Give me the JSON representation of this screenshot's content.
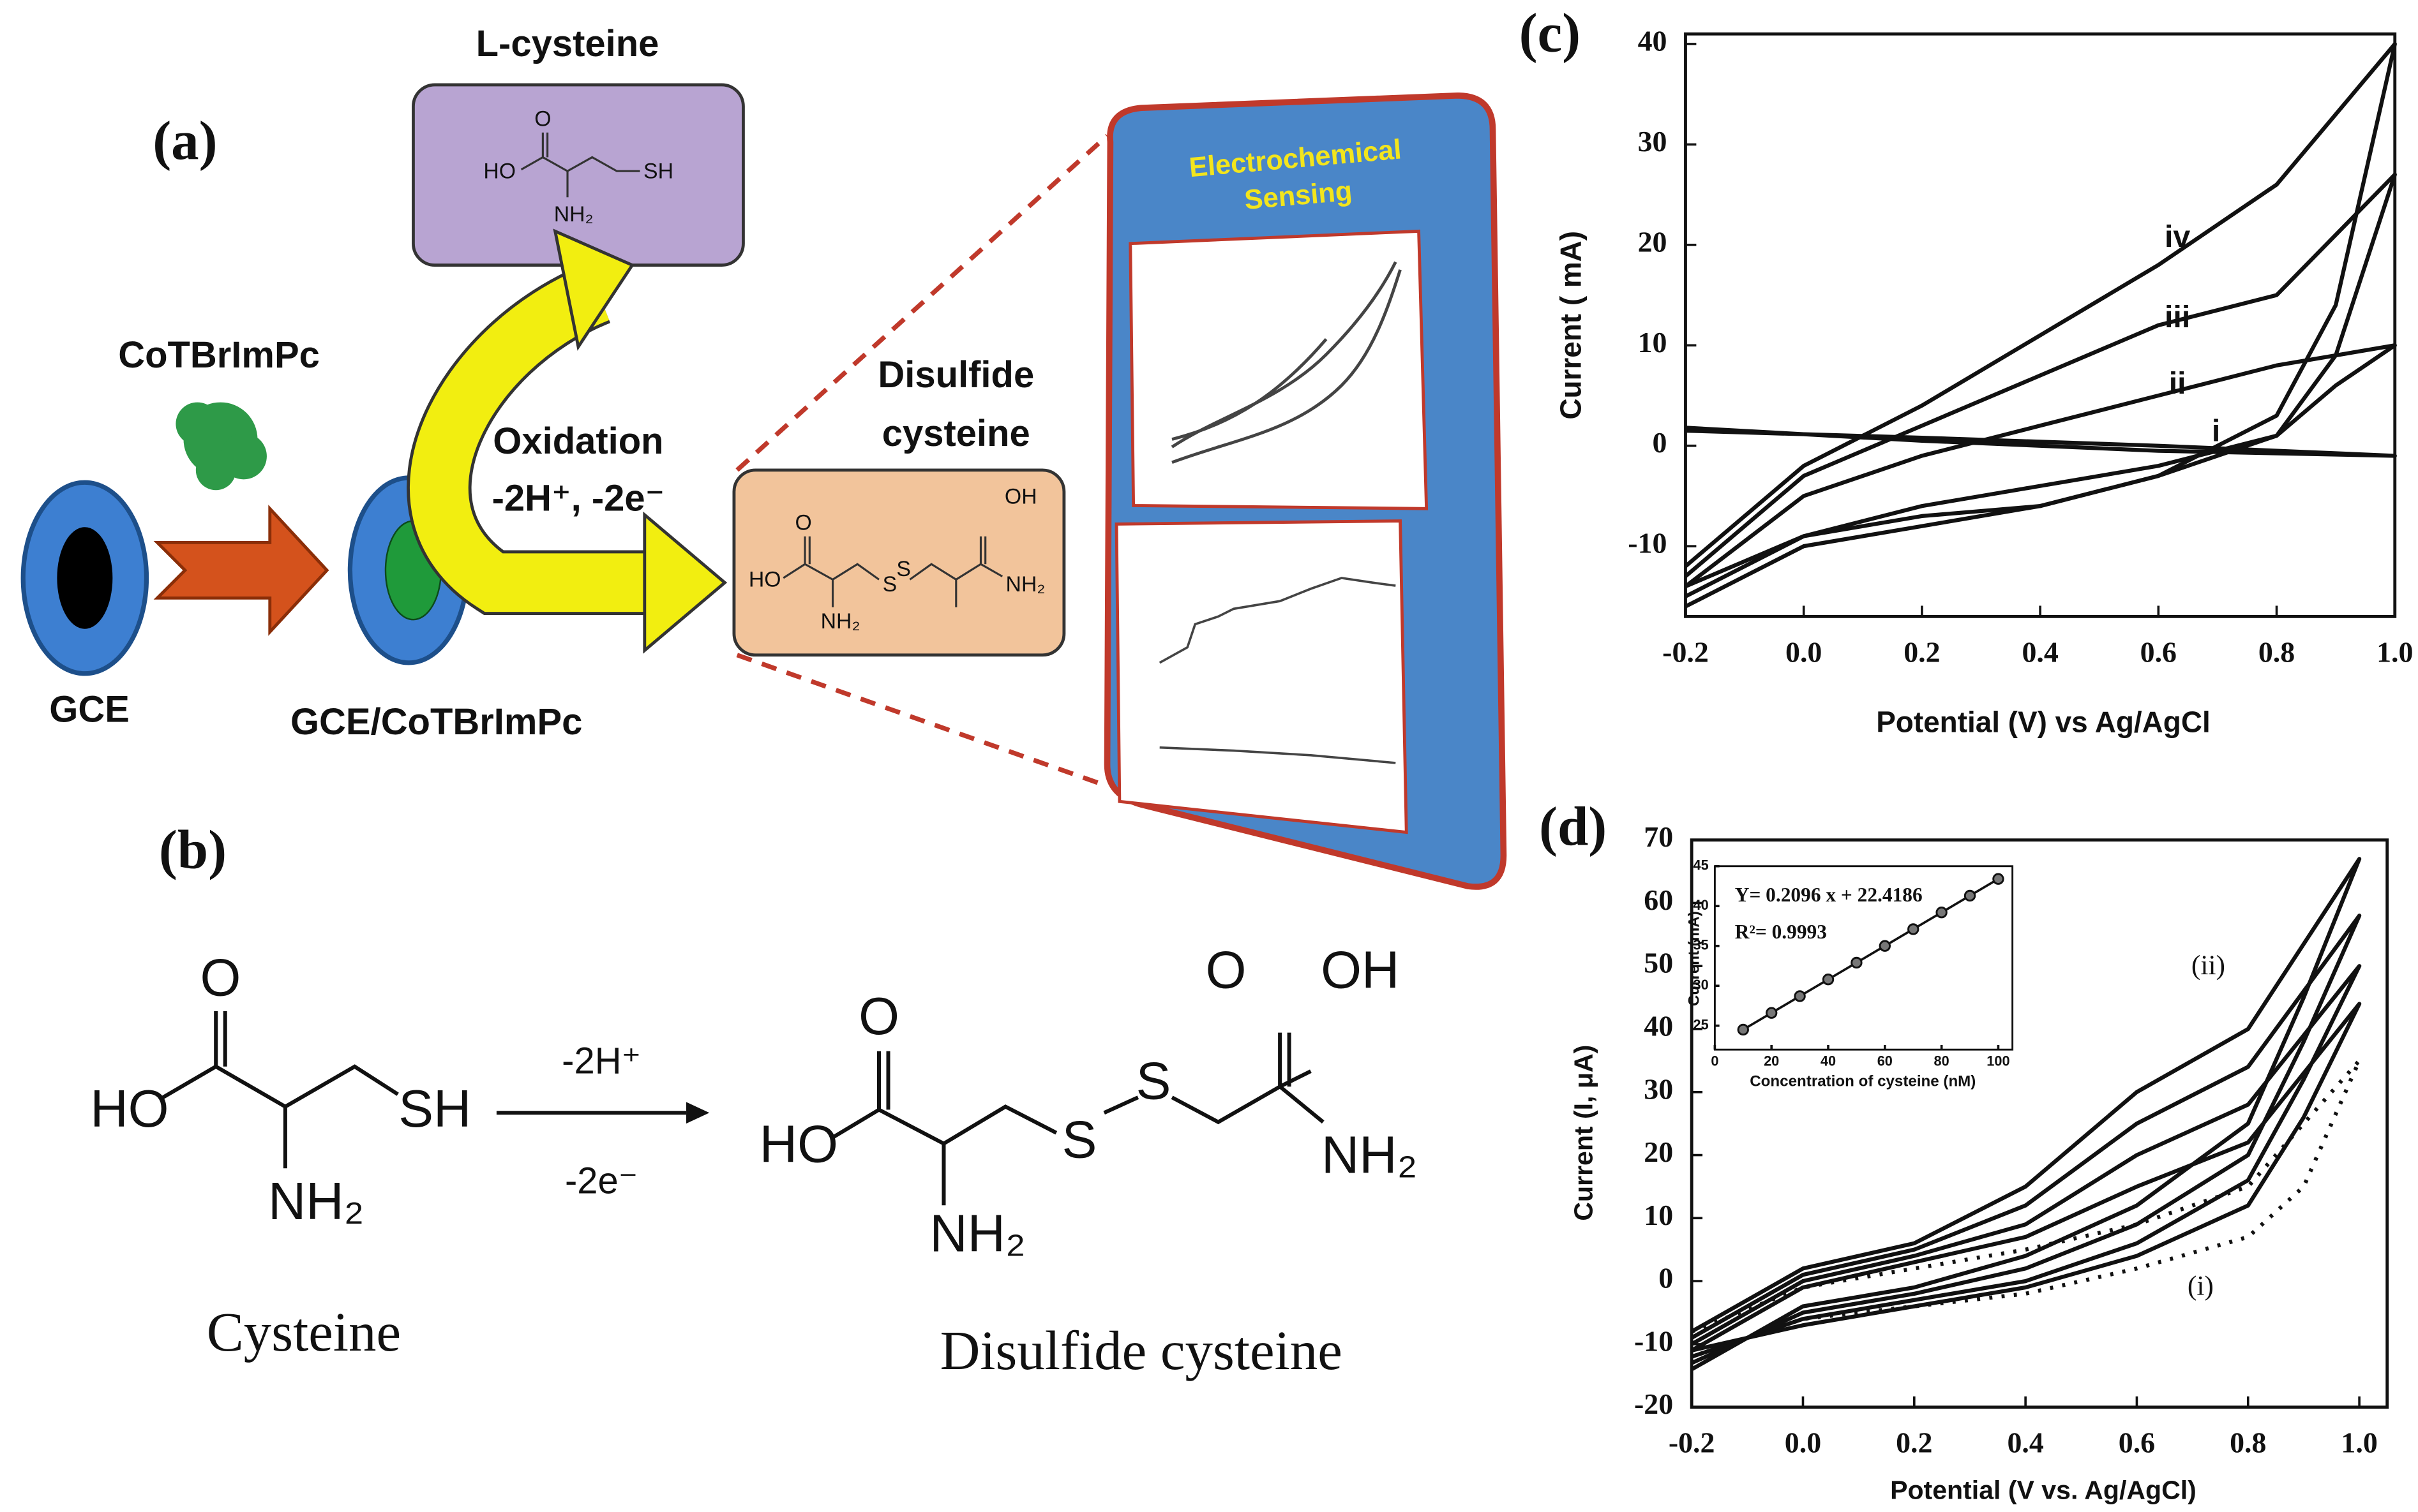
{
  "diagram": {
    "a": {
      "label": "(a)",
      "reagent": "L-cysteine",
      "reagent_atoms": [
        "O",
        "HO",
        "SH",
        "NH₂"
      ],
      "modifier": "CoTBrImPc",
      "electrode": "GCE",
      "modified_electrode": "GCE/CoTBrImPc",
      "reaction": "Oxidation",
      "reaction_detail": "-2H⁺, -2e⁻",
      "product_line1": "Disulfide",
      "product_line2": "cysteine",
      "product_atoms": [
        "O",
        "OH",
        "HO",
        "S",
        "S",
        "NH₂",
        "NH₂"
      ],
      "sensing_line1": "Electrochemical",
      "sensing_line2": "Sensing"
    },
    "b": {
      "label": "(b)",
      "reactant_atoms": [
        "O",
        "HO",
        "SH",
        "NH₂"
      ],
      "reactant_name": "Cysteine",
      "arrow_top": "-2H⁺",
      "arrow_bottom": "-2e⁻",
      "product_atoms": [
        "O",
        "OH",
        "O",
        "HO",
        "S",
        "S",
        "NH₂",
        "NH₂"
      ],
      "product_name": "Disulfide cysteine"
    }
  },
  "chart_data": [
    {
      "type": "line",
      "panel_label": "(c)",
      "xlabel": "Potential (V) vs Ag/AgCl",
      "ylabel": "Current ( mA)",
      "xlim": [
        -0.2,
        1.0
      ],
      "ylim": [
        -17,
        41
      ],
      "xticks": [
        -0.2,
        {
          "value": 0,
          "label": "0.0"
        },
        0.2,
        0.4,
        0.6,
        0.8,
        {
          "value": 1,
          "label": "1.0"
        }
      ],
      "yticks": [
        -10,
        0,
        10,
        20,
        30,
        40
      ],
      "series": [
        {
          "name": "iv",
          "color": "#111111",
          "x": [
            -0.2,
            0,
            0.2,
            0.4,
            0.6,
            0.8,
            1.0,
            0.9,
            0.8,
            0.6,
            0.4,
            0.2,
            0,
            -0.2
          ],
          "values": [
            -12,
            -2,
            4,
            11,
            18,
            26,
            40,
            14,
            3,
            -3,
            -6,
            -8,
            -10,
            -16
          ]
        },
        {
          "name": "iii",
          "color": "#111111",
          "x": [
            -0.2,
            0,
            0.2,
            0.4,
            0.6,
            0.8,
            1.0,
            0.9,
            0.8,
            0.6,
            0.4,
            0.2,
            0,
            -0.2
          ],
          "values": [
            -13,
            -3,
            2,
            7,
            12,
            15,
            27,
            9,
            1,
            -3,
            -6,
            -7,
            -9,
            -15
          ]
        },
        {
          "name": "ii",
          "color": "#111111",
          "x": [
            -0.2,
            0,
            0.2,
            0.4,
            0.6,
            0.8,
            1.0,
            0.9,
            0.8,
            0.6,
            0.4,
            0.2,
            0,
            -0.2
          ],
          "values": [
            -14,
            -5,
            -1,
            2,
            5,
            8,
            10,
            6,
            1,
            -2,
            -4,
            -6,
            -9,
            -14
          ]
        },
        {
          "name": "i",
          "color": "#111111",
          "x": [
            -0.2,
            0.2,
            0.6,
            1.0,
            0.6,
            0.2,
            -0.2
          ],
          "values": [
            1.5,
            0.8,
            0,
            -1,
            -0.5,
            0.5,
            1.8
          ]
        }
      ]
    },
    {
      "type": "line",
      "panel_label": "(d)",
      "xlabel": "Potential (V vs. Ag/AgCl)",
      "ylabel": "Current (I, μA)",
      "xlim": [
        -0.2,
        1.05
      ],
      "ylim": [
        -20,
        70
      ],
      "xticks": [
        -0.2,
        {
          "value": 0,
          "label": "0.0"
        },
        0.2,
        0.4,
        0.6,
        0.8,
        {
          "value": 1,
          "label": "1.0"
        }
      ],
      "yticks": [
        -20,
        -10,
        0,
        10,
        20,
        30,
        40,
        50,
        60,
        70
      ],
      "series": [
        {
          "name": "(ii)",
          "color": "#111111",
          "style": "solid",
          "x": [
            -0.2,
            0,
            0.2,
            0.4,
            0.6,
            0.8,
            1.0,
            0.9,
            0.8,
            0.6,
            0.4,
            0.2,
            0,
            -0.2
          ],
          "values": [
            -8,
            2,
            6,
            15,
            30,
            40,
            67,
            45,
            25,
            12,
            4,
            -1,
            -4,
            -14
          ]
        },
        {
          "color": "#111111",
          "style": "solid",
          "x": [
            -0.2,
            0,
            0.2,
            0.4,
            0.6,
            0.8,
            1.0,
            0.9,
            0.8,
            0.6,
            0.4,
            0.2,
            0,
            -0.2
          ],
          "values": [
            -9,
            1,
            5,
            12,
            25,
            34,
            58,
            38,
            20,
            9,
            2,
            -2,
            -5,
            -13
          ]
        },
        {
          "color": "#111111",
          "style": "solid",
          "x": [
            -0.2,
            0,
            0.2,
            0.4,
            0.6,
            0.8,
            1.0,
            0.9,
            0.8,
            0.6,
            0.4,
            0.2,
            0,
            -0.2
          ],
          "values": [
            -10,
            0,
            4,
            9,
            20,
            28,
            50,
            32,
            16,
            6,
            0,
            -3,
            -6,
            -12
          ]
        },
        {
          "color": "#111111",
          "style": "solid",
          "x": [
            -0.2,
            0,
            0.2,
            0.4,
            0.6,
            0.8,
            1.0,
            0.9,
            0.8,
            0.6,
            0.4,
            0.2,
            0,
            -0.2
          ],
          "values": [
            -11,
            -1,
            3,
            7,
            15,
            22,
            44,
            26,
            12,
            4,
            -1,
            -4,
            -7,
            -11
          ]
        },
        {
          "name": "(i)",
          "color": "#111111",
          "style": "dotted",
          "x": [
            -0.2,
            0,
            0.2,
            0.4,
            0.6,
            0.8,
            1.0,
            0.9,
            0.8,
            0.6,
            0.4,
            0.2,
            0,
            -0.2
          ],
          "values": [
            -8,
            -1,
            2,
            5,
            9,
            15,
            35,
            15,
            7,
            2,
            -2,
            -4,
            -6,
            -12
          ]
        }
      ]
    },
    {
      "type": "scatter",
      "xlabel": "Concentration of cysteine (nM)",
      "ylabel": "Current (mA)",
      "annotations": [
        "Y= 0.2096 x + 22.4186",
        "R²= 0.9993"
      ],
      "xlim": [
        0,
        105
      ],
      "ylim": [
        22,
        45
      ],
      "xticks": [
        0,
        20,
        40,
        60,
        80,
        100
      ],
      "yticks": [
        25,
        30,
        35,
        40,
        45
      ],
      "color": "#111111",
      "x": [
        10,
        20,
        30,
        40,
        50,
        60,
        70,
        80,
        90,
        100
      ],
      "values": [
        24.5,
        26.6,
        28.7,
        30.8,
        32.9,
        35.0,
        37.1,
        39.2,
        41.3,
        43.4
      ]
    }
  ]
}
